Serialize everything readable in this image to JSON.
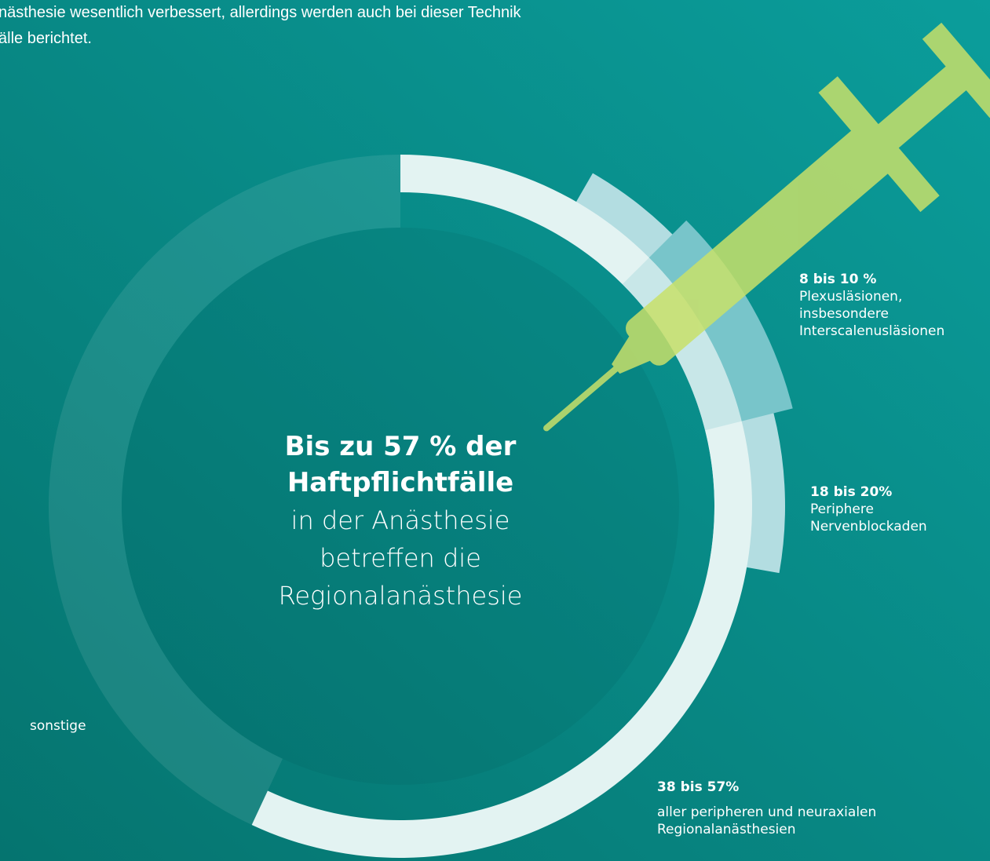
{
  "intro": {
    "lines": [
      "nästhesie wesentlich verbessert, allerdings werden auch bei dieser Technik",
      "älle berichtet."
    ]
  },
  "center": {
    "headline": [
      "Bis zu 57 % der",
      "Haftpflichtfälle"
    ],
    "text": [
      "in der Anästhesie",
      "betreffen die",
      "Regionalanästhesie"
    ]
  },
  "labels": [
    {
      "figure": "8 bis 10 %",
      "text": [
        "Plexusläsionen,",
        "insbesondere",
        "Interscalenusläsionen"
      ]
    },
    {
      "figure": "18 bis 20%",
      "text": [
        "Periphere",
        "Nervenblockaden"
      ]
    },
    {
      "figure": "38 bis 57%",
      "text": [
        "aller peripheren und neuraxialen",
        "Regionalanästhesien"
      ]
    },
    {
      "text": [
        "sonstige"
      ]
    }
  ]
}
